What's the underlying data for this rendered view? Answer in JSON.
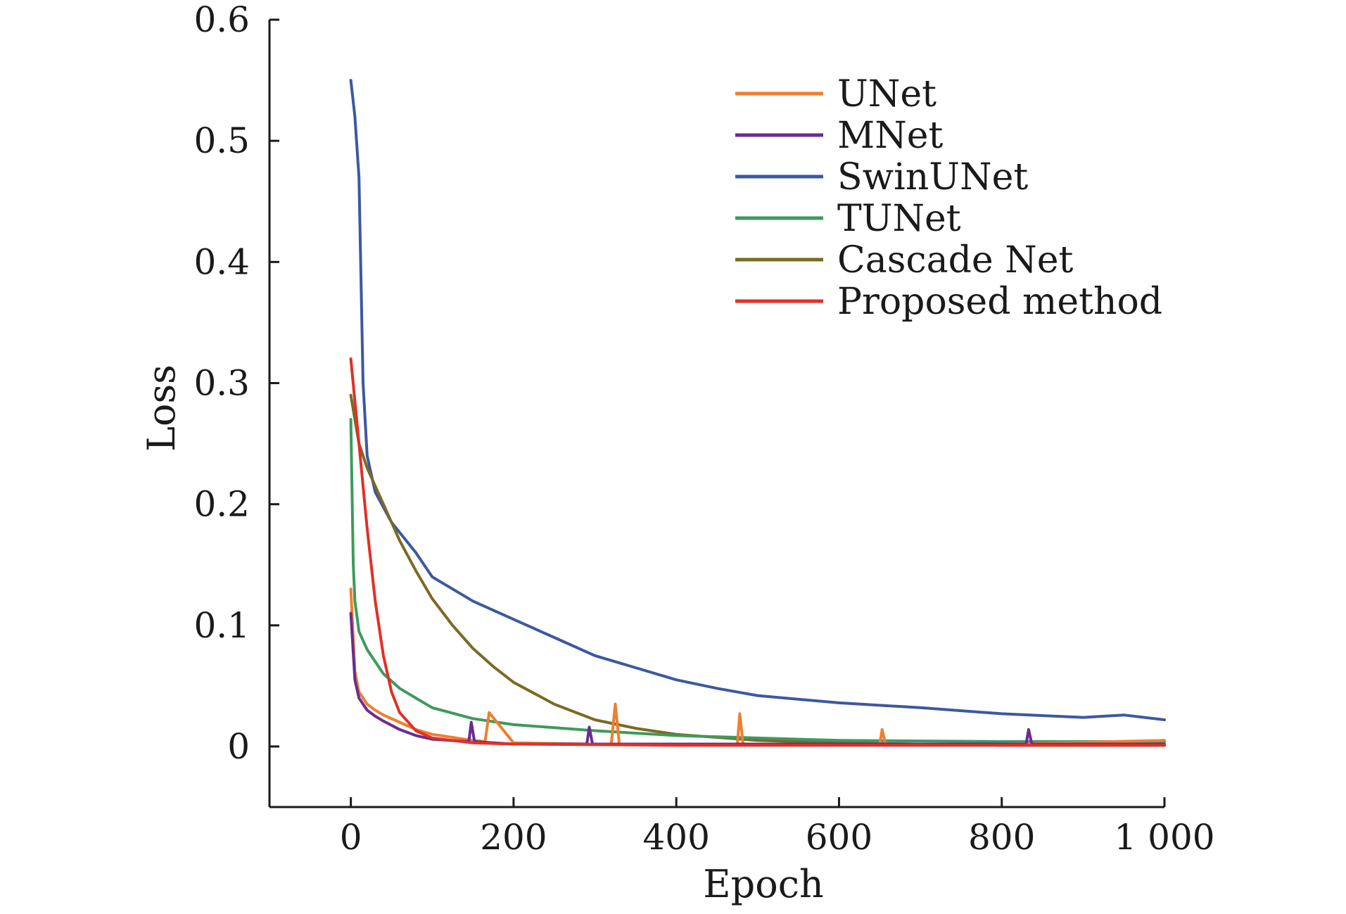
{
  "chart_data": {
    "type": "line",
    "xlabel": "Epoch",
    "ylabel": "Loss",
    "xlim": [
      -100,
      1000
    ],
    "ylim": [
      -0.05,
      0.6
    ],
    "xticks": [
      0,
      200,
      400,
      600,
      800,
      1000
    ],
    "xtick_labels": [
      "0",
      "200",
      "400",
      "600",
      "800",
      "1 000"
    ],
    "yticks": [
      0,
      0.1,
      0.2,
      0.3,
      0.4,
      0.5,
      0.6
    ],
    "ytick_labels": [
      "0",
      "0.1",
      "0.2",
      "0.3",
      "0.4",
      "0.5",
      "0.6"
    ],
    "grid": false,
    "legend_position": "top-right",
    "series": [
      {
        "name": "UNet",
        "color": "#EF7E2E",
        "x": [
          0,
          5,
          10,
          20,
          30,
          40,
          60,
          80,
          100,
          150,
          165,
          170,
          200,
          300,
          320,
          325,
          330,
          400,
          475,
          478,
          482,
          600,
          650,
          653,
          657,
          800,
          1000
        ],
        "y": [
          0.13,
          0.062,
          0.045,
          0.035,
          0.03,
          0.026,
          0.02,
          0.014,
          0.01,
          0.005,
          0.004,
          0.028,
          0.003,
          0.002,
          0.002,
          0.035,
          0.002,
          0.002,
          0.002,
          0.027,
          0.002,
          0.002,
          0.002,
          0.014,
          0.002,
          0.002,
          0.005
        ]
      },
      {
        "name": "MNet",
        "color": "#6A2C91",
        "x": [
          0,
          5,
          10,
          20,
          30,
          40,
          60,
          80,
          100,
          145,
          148,
          152,
          200,
          290,
          293,
          297,
          400,
          600,
          830,
          833,
          837,
          1000
        ],
        "y": [
          0.11,
          0.055,
          0.04,
          0.03,
          0.025,
          0.021,
          0.014,
          0.009,
          0.006,
          0.004,
          0.02,
          0.004,
          0.002,
          0.002,
          0.016,
          0.002,
          0.002,
          0.002,
          0.002,
          0.014,
          0.002,
          0.002
        ]
      },
      {
        "name": "SwinUNet",
        "color": "#3C58A0",
        "x": [
          0,
          5,
          10,
          15,
          20,
          30,
          50,
          80,
          100,
          150,
          200,
          250,
          300,
          350,
          400,
          450,
          500,
          600,
          700,
          800,
          900,
          950,
          1000
        ],
        "y": [
          0.55,
          0.52,
          0.47,
          0.3,
          0.24,
          0.21,
          0.185,
          0.16,
          0.14,
          0.12,
          0.105,
          0.09,
          0.075,
          0.065,
          0.055,
          0.048,
          0.042,
          0.036,
          0.032,
          0.027,
          0.024,
          0.026,
          0.022
        ]
      },
      {
        "name": "TUNet",
        "color": "#3E9A5C",
        "x": [
          0,
          3,
          5,
          10,
          20,
          40,
          60,
          80,
          100,
          150,
          200,
          300,
          400,
          500,
          600,
          800,
          1000
        ],
        "y": [
          0.27,
          0.15,
          0.12,
          0.095,
          0.08,
          0.06,
          0.048,
          0.04,
          0.032,
          0.023,
          0.018,
          0.013,
          0.009,
          0.007,
          0.005,
          0.004,
          0.004
        ]
      },
      {
        "name": "Cascade Net",
        "color": "#7A6A24",
        "x": [
          0,
          10,
          20,
          30,
          40,
          50,
          60,
          80,
          100,
          125,
          150,
          175,
          200,
          250,
          300,
          350,
          400,
          500,
          600,
          700,
          800,
          1000
        ],
        "y": [
          0.29,
          0.25,
          0.23,
          0.215,
          0.2,
          0.185,
          0.17,
          0.145,
          0.122,
          0.1,
          0.081,
          0.066,
          0.053,
          0.035,
          0.022,
          0.015,
          0.01,
          0.005,
          0.003,
          0.002,
          0.001,
          0.001
        ]
      },
      {
        "name": "Proposed method",
        "color": "#E03028",
        "x": [
          0,
          10,
          20,
          30,
          40,
          50,
          60,
          80,
          100,
          150,
          200,
          400,
          600,
          800,
          1000
        ],
        "y": [
          0.32,
          0.25,
          0.18,
          0.12,
          0.075,
          0.045,
          0.028,
          0.013,
          0.007,
          0.003,
          0.002,
          0.001,
          0.001,
          0.001,
          0.001
        ]
      }
    ]
  }
}
